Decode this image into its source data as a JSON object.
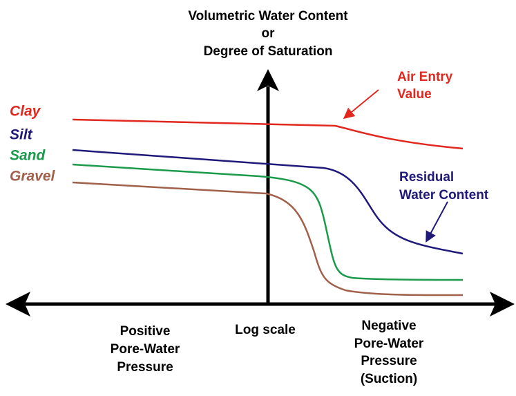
{
  "axis_label": {
    "lines": [
      "Volumetric Water Content",
      "or",
      "Degree of Saturation"
    ]
  },
  "curves": [
    {
      "label": "Clay"
    },
    {
      "label": "Silt"
    },
    {
      "label": "Sand"
    },
    {
      "label": "Gravel"
    }
  ],
  "annotations": {
    "air_entry": [
      "Air Entry",
      "Value"
    ],
    "residual": [
      "Residual",
      "Water Content"
    ]
  },
  "x_labels": {
    "positive": [
      "Positive",
      "Pore-Water",
      "Pressure"
    ],
    "center": "Log scale",
    "negative": [
      "Negative",
      "Pore-Water",
      "Pressure",
      "(Suction)"
    ]
  }
}
